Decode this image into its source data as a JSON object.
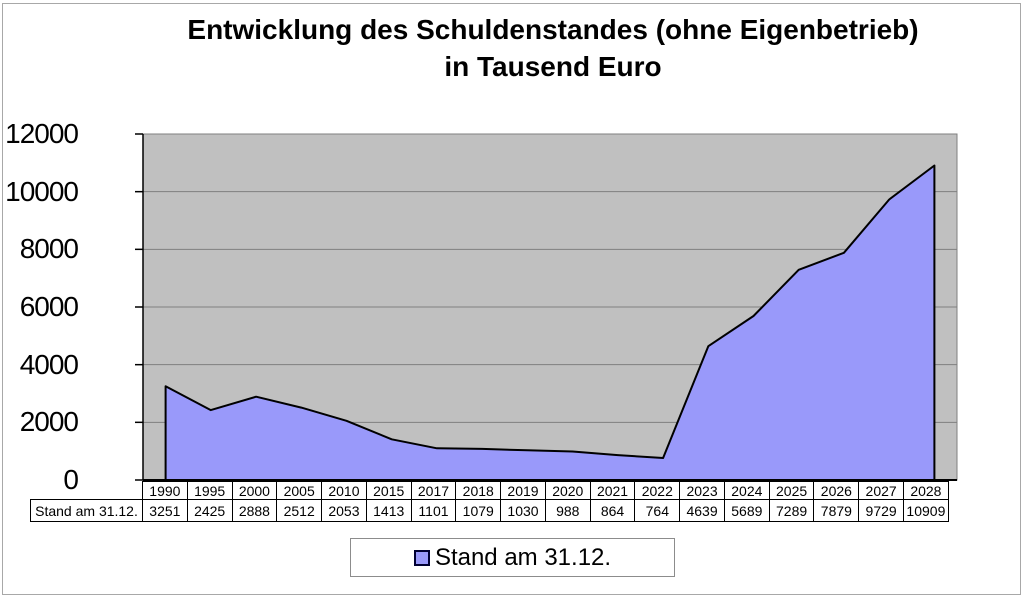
{
  "title": {
    "line1": "Entwicklung des Schuldenstandes (ohne Eigenbetrieb)",
    "line2": "in Tausend Euro"
  },
  "legend": {
    "label": "Stand am 31.12."
  },
  "data_table": {
    "row_label": "Stand am 31.12."
  },
  "chart_data": {
    "type": "area",
    "title": "Entwicklung des Schuldenstandes (ohne Eigenbetrieb) in Tausend Euro",
    "categories": [
      "1990",
      "1995",
      "2000",
      "2005",
      "2010",
      "2015",
      "2017",
      "2018",
      "2019",
      "2020",
      "2021",
      "2022",
      "2023",
      "2024",
      "2025",
      "2026",
      "2027",
      "2028"
    ],
    "series": [
      {
        "name": "Stand am 31.12.",
        "values": [
          3251,
          2425,
          2888,
          2512,
          2053,
          1413,
          1101,
          1079,
          1030,
          988,
          864,
          764,
          4639,
          5689,
          7289,
          7879,
          9729,
          10909
        ]
      }
    ],
    "xlabel": "",
    "ylabel": "",
    "ylim": [
      0,
      12000
    ],
    "y_ticks": [
      0,
      2000,
      4000,
      6000,
      8000,
      10000,
      12000
    ],
    "grid": true,
    "legend_position": "bottom",
    "data_table_shown": true,
    "colors": {
      "area_fill": "#9999FA",
      "area_outline": "#000000",
      "plot_background": "#C0C0C0",
      "gridline": "#7F7F7F",
      "axis": "#000000",
      "table_border": "#000000",
      "legend_marker_fill": "#9999FA",
      "legend_marker_border": "#000033"
    }
  }
}
